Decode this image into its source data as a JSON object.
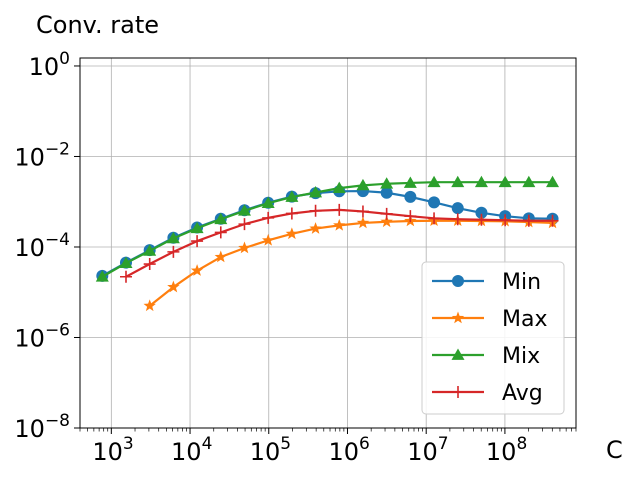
{
  "chart_data": {
    "type": "line",
    "title": "",
    "ylabel": "Conv. rate",
    "xlabel": "C",
    "xscale": "log",
    "yscale": "log",
    "xlim": [
      400,
      800000000
    ],
    "ylim": [
      1e-08,
      1.5
    ],
    "grid": true,
    "legend_position": "lower-right",
    "x_ticks": [
      {
        "base": "10",
        "exp": "3",
        "value": 1000
      },
      {
        "base": "10",
        "exp": "4",
        "value": 10000
      },
      {
        "base": "10",
        "exp": "5",
        "value": 100000
      },
      {
        "base": "10",
        "exp": "6",
        "value": 1000000
      },
      {
        "base": "10",
        "exp": "7",
        "value": 10000000
      },
      {
        "base": "10",
        "exp": "8",
        "value": 100000000
      }
    ],
    "y_ticks": [
      {
        "base": "10",
        "exp": "0",
        "value": 1
      },
      {
        "base": "10",
        "exp": "−2",
        "value": 0.01
      },
      {
        "base": "10",
        "exp": "−4",
        "value": 0.0001
      },
      {
        "base": "10",
        "exp": "−6",
        "value": 1e-06
      },
      {
        "base": "10",
        "exp": "−8",
        "value": 1e-08
      }
    ],
    "series": [
      {
        "name": "Min",
        "color": "#1f77b4",
        "marker": "circle",
        "x": [
          768,
          1536,
          3072,
          6144,
          12288,
          24576,
          49152,
          98304,
          196608,
          393216,
          786432,
          1572864,
          3145728,
          6291456,
          12582912,
          25165824,
          50331648,
          100663296,
          201326592,
          402653184
        ],
        "y": [
          2.3e-05,
          4.5e-05,
          8.5e-05,
          0.00016,
          0.00027,
          0.00042,
          0.00065,
          0.00095,
          0.0013,
          0.00155,
          0.0017,
          0.00172,
          0.00158,
          0.00128,
          0.00097,
          0.00072,
          0.00057,
          0.00048,
          0.00043,
          0.00042
        ]
      },
      {
        "name": "Max",
        "color": "#ff7f0e",
        "marker": "star",
        "x": [
          3072,
          6144,
          12288,
          24576,
          49152,
          98304,
          196608,
          393216,
          786432,
          1572864,
          3145728,
          6291456,
          12582912,
          25165824,
          50331648,
          100663296,
          201326592,
          402653184
        ],
        "y": [
          5e-06,
          1.3e-05,
          3e-05,
          6e-05,
          9.5e-05,
          0.00014,
          0.000195,
          0.000255,
          0.0003,
          0.00034,
          0.00036,
          0.000375,
          0.00038,
          0.00038,
          0.000375,
          0.00037,
          0.000355,
          0.00034
        ]
      },
      {
        "name": "Mix",
        "color": "#2ca02c",
        "marker": "triangle",
        "x": [
          768,
          1536,
          3072,
          6144,
          12288,
          24576,
          49152,
          98304,
          196608,
          393216,
          786432,
          1572864,
          3145728,
          6291456,
          12582912,
          25165824,
          50331648,
          100663296,
          201326592,
          402653184
        ],
        "y": [
          2.2e-05,
          4.4e-05,
          8.2e-05,
          0.000155,
          0.00026,
          0.00041,
          0.00063,
          0.00093,
          0.00127,
          0.0016,
          0.002,
          0.0023,
          0.0025,
          0.0026,
          0.0027,
          0.0027,
          0.0027,
          0.0027,
          0.0027,
          0.0027
        ]
      },
      {
        "name": "Avg",
        "color": "#d62728",
        "marker": "plus",
        "x": [
          1536,
          3072,
          6144,
          12288,
          24576,
          49152,
          98304,
          196608,
          393216,
          786432,
          1572864,
          3145728,
          6291456,
          12582912,
          25165824,
          50331648,
          100663296,
          201326592,
          402653184
        ],
        "y": [
          2.2e-05,
          4.2e-05,
          7.8e-05,
          0.000135,
          0.00021,
          0.00032,
          0.00044,
          0.00055,
          0.00063,
          0.00066,
          0.00061,
          0.00054,
          0.00048,
          0.00043,
          0.00041,
          0.0004,
          0.00039,
          0.00038,
          0.00038
        ]
      }
    ]
  }
}
